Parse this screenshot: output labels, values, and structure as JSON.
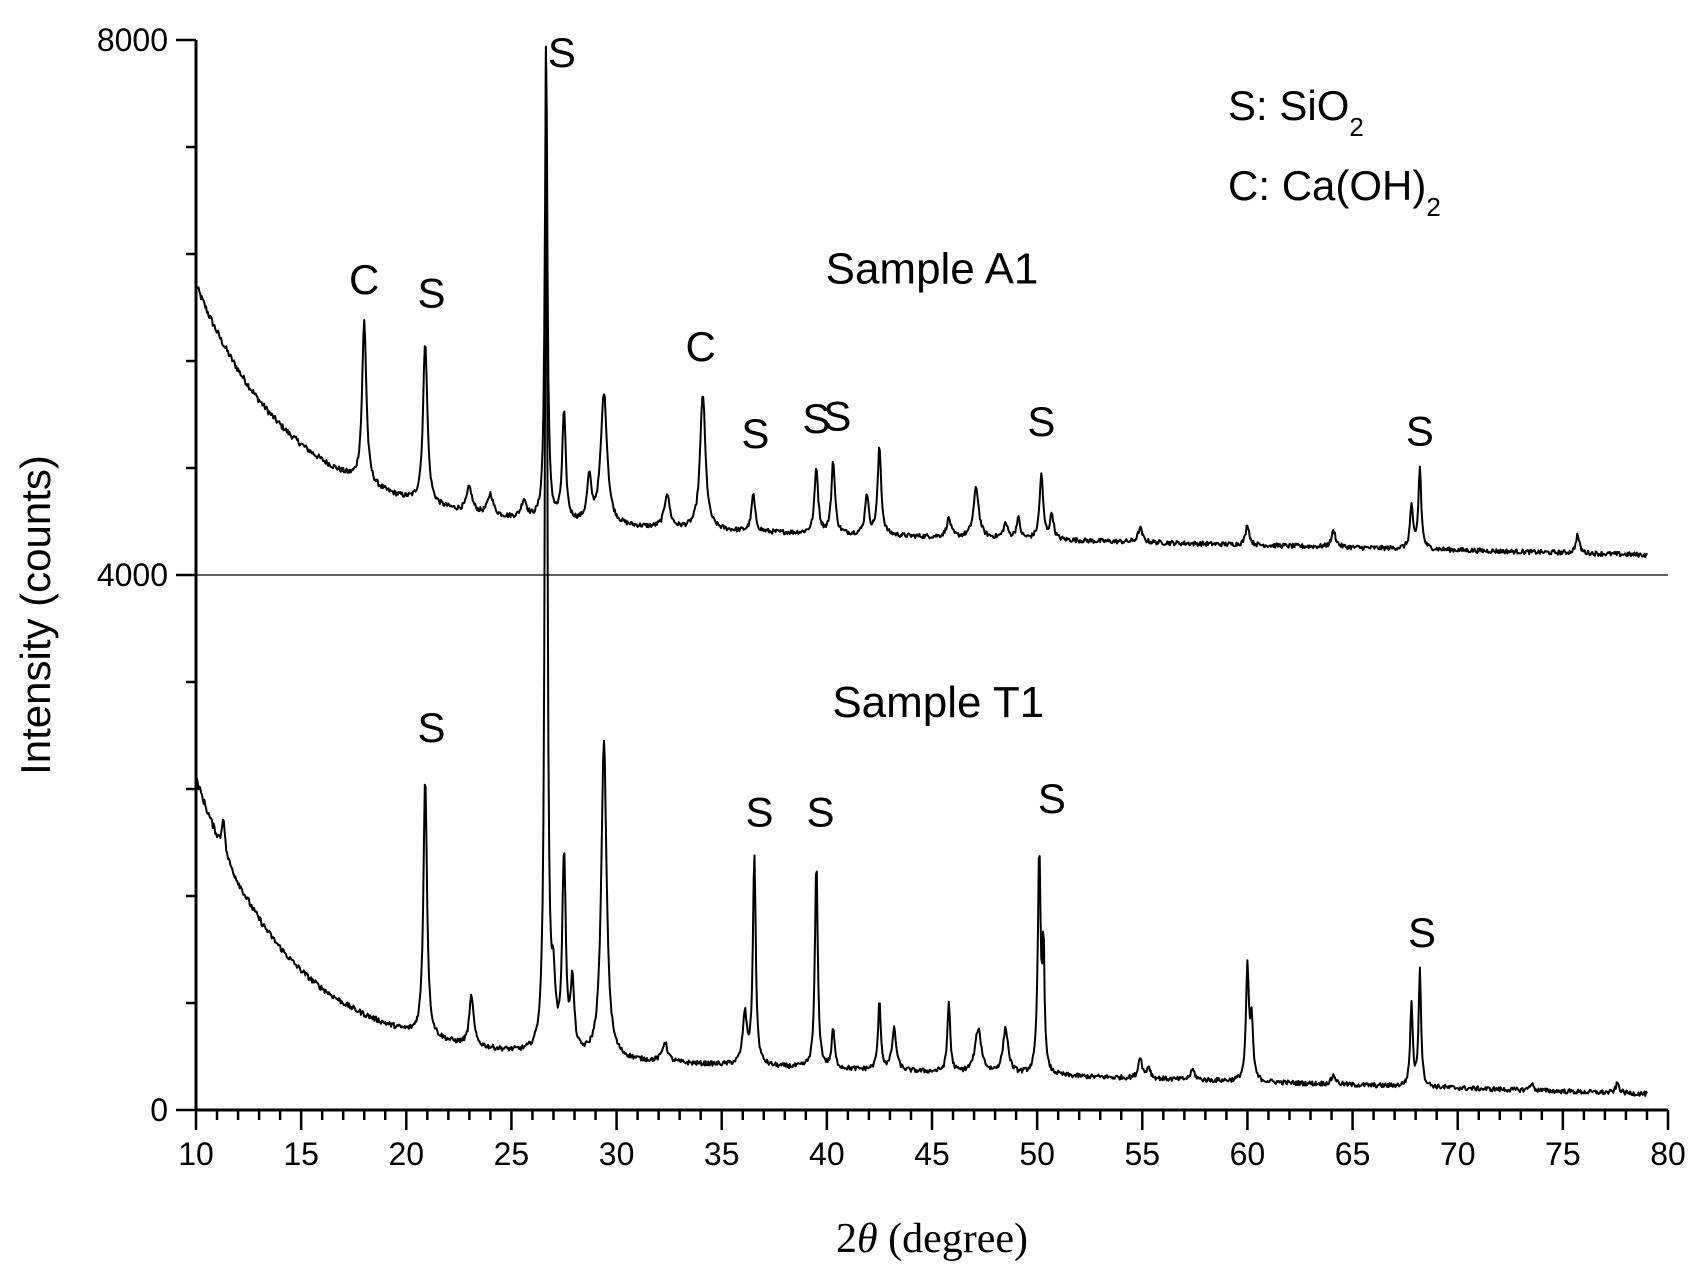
{
  "chart_data": {
    "type": "line",
    "title": "",
    "xlabel_prefix": "2",
    "xlabel_symbol": "θ",
    "xlabel_suffix": " (degree)",
    "ylabel": "Intensity (counts)",
    "xlim": [
      10,
      80
    ],
    "ylim": [
      0,
      8000
    ],
    "x_ticks": [
      10,
      15,
      20,
      25,
      30,
      35,
      40,
      45,
      50,
      55,
      60,
      65,
      70,
      75,
      80
    ],
    "y_ticks": [
      0,
      4000,
      8000
    ],
    "separator_y": 4000,
    "legend": [
      {
        "symbol": "S",
        "sep": ": ",
        "formula": "SiO",
        "subscript": "2"
      },
      {
        "symbol": "C",
        "sep": ": ",
        "formula": "Ca(OH)",
        "subscript": "2"
      }
    ],
    "series": [
      {
        "name": "Sample A1",
        "x_range": [
          10,
          79
        ],
        "baseline": {
          "start": 5900,
          "end": 4150,
          "decay": 4.5,
          "mid": 4420
        },
        "peaks": [
          {
            "x": 18.0,
            "y": 5900,
            "width": 0.12
          },
          {
            "x": 20.9,
            "y": 5750,
            "width": 0.12
          },
          {
            "x": 23.0,
            "y": 4650,
            "width": 0.15
          },
          {
            "x": 24.0,
            "y": 4600,
            "width": 0.15
          },
          {
            "x": 25.6,
            "y": 4550,
            "width": 0.15
          },
          {
            "x": 26.65,
            "y": 8000,
            "width": 0.07
          },
          {
            "x": 27.5,
            "y": 5200,
            "width": 0.1
          },
          {
            "x": 28.7,
            "y": 4700,
            "width": 0.12
          },
          {
            "x": 29.4,
            "y": 5350,
            "width": 0.18
          },
          {
            "x": 32.4,
            "y": 4600,
            "width": 0.15
          },
          {
            "x": 34.1,
            "y": 5350,
            "width": 0.15
          },
          {
            "x": 36.5,
            "y": 4600,
            "width": 0.1
          },
          {
            "x": 39.5,
            "y": 4800,
            "width": 0.1
          },
          {
            "x": 40.3,
            "y": 4850,
            "width": 0.1
          },
          {
            "x": 41.9,
            "y": 4600,
            "width": 0.1
          },
          {
            "x": 42.5,
            "y": 4950,
            "width": 0.1
          },
          {
            "x": 45.8,
            "y": 4420,
            "width": 0.12
          },
          {
            "x": 47.1,
            "y": 4650,
            "width": 0.15
          },
          {
            "x": 48.5,
            "y": 4380,
            "width": 0.12
          },
          {
            "x": 49.1,
            "y": 4420,
            "width": 0.1
          },
          {
            "x": 50.2,
            "y": 4750,
            "width": 0.1
          },
          {
            "x": 50.7,
            "y": 4450,
            "width": 0.1
          },
          {
            "x": 54.9,
            "y": 4350,
            "width": 0.12
          },
          {
            "x": 60.0,
            "y": 4380,
            "width": 0.1
          },
          {
            "x": 64.1,
            "y": 4330,
            "width": 0.12
          },
          {
            "x": 67.8,
            "y": 4520,
            "width": 0.08
          },
          {
            "x": 68.2,
            "y": 4800,
            "width": 0.08
          },
          {
            "x": 75.7,
            "y": 4300,
            "width": 0.1
          }
        ]
      },
      {
        "name": "Sample T1",
        "x_range": [
          10,
          79
        ],
        "baseline": {
          "start": 2150,
          "end": 120,
          "decay": 4.2,
          "mid": 450
        },
        "peaks": [
          {
            "x": 11.3,
            "y": 2200,
            "width": 0.08
          },
          {
            "x": 20.9,
            "y": 2500,
            "width": 0.1
          },
          {
            "x": 23.1,
            "y": 850,
            "width": 0.12
          },
          {
            "x": 26.65,
            "y": 8000,
            "width": 0.07
          },
          {
            "x": 27.0,
            "y": 850,
            "width": 0.1
          },
          {
            "x": 27.5,
            "y": 1850,
            "width": 0.1
          },
          {
            "x": 27.9,
            "y": 900,
            "width": 0.1
          },
          {
            "x": 29.4,
            "y": 2750,
            "width": 0.15
          },
          {
            "x": 32.3,
            "y": 500,
            "width": 0.15
          },
          {
            "x": 36.1,
            "y": 700,
            "width": 0.12
          },
          {
            "x": 36.55,
            "y": 1900,
            "width": 0.08
          },
          {
            "x": 39.5,
            "y": 1850,
            "width": 0.08
          },
          {
            "x": 40.3,
            "y": 600,
            "width": 0.08
          },
          {
            "x": 42.5,
            "y": 800,
            "width": 0.08
          },
          {
            "x": 43.2,
            "y": 600,
            "width": 0.12
          },
          {
            "x": 45.8,
            "y": 800,
            "width": 0.08
          },
          {
            "x": 47.2,
            "y": 600,
            "width": 0.18
          },
          {
            "x": 48.5,
            "y": 600,
            "width": 0.15
          },
          {
            "x": 50.1,
            "y": 1900,
            "width": 0.08
          },
          {
            "x": 50.3,
            "y": 1150,
            "width": 0.06
          },
          {
            "x": 54.9,
            "y": 400,
            "width": 0.1
          },
          {
            "x": 55.3,
            "y": 320,
            "width": 0.1
          },
          {
            "x": 57.4,
            "y": 300,
            "width": 0.12
          },
          {
            "x": 60.0,
            "y": 1050,
            "width": 0.08
          },
          {
            "x": 60.2,
            "y": 650,
            "width": 0.08
          },
          {
            "x": 64.1,
            "y": 260,
            "width": 0.12
          },
          {
            "x": 67.8,
            "y": 800,
            "width": 0.07
          },
          {
            "x": 68.2,
            "y": 1050,
            "width": 0.07
          },
          {
            "x": 73.5,
            "y": 200,
            "width": 0.1
          },
          {
            "x": 77.6,
            "y": 200,
            "width": 0.1
          }
        ]
      }
    ],
    "annotations": [
      {
        "text": "S",
        "x": 27.4,
        "y": 7800
      },
      {
        "text": "C",
        "x": 18.0,
        "y": 6100
      },
      {
        "text": "S",
        "x": 21.2,
        "y": 6000
      },
      {
        "text": "C",
        "x": 34.0,
        "y": 5600
      },
      {
        "text": "S",
        "x": 36.6,
        "y": 4950
      },
      {
        "text": "S",
        "x": 39.5,
        "y": 5060
      },
      {
        "text": "S",
        "x": 40.5,
        "y": 5080
      },
      {
        "text": "S",
        "x": 50.2,
        "y": 5040
      },
      {
        "text": "S",
        "x": 68.2,
        "y": 4970
      },
      {
        "text": "S",
        "x": 21.2,
        "y": 2750
      },
      {
        "text": "S",
        "x": 36.8,
        "y": 2120
      },
      {
        "text": "S",
        "x": 39.7,
        "y": 2120
      },
      {
        "text": "S",
        "x": 50.7,
        "y": 2220
      },
      {
        "text": "S",
        "x": 68.3,
        "y": 1220
      }
    ],
    "sample_labels": [
      {
        "text": "Sample A1",
        "x": 45.0,
        "y": 6180
      },
      {
        "text": "Sample T1",
        "x": 45.3,
        "y": 2940
      }
    ]
  }
}
